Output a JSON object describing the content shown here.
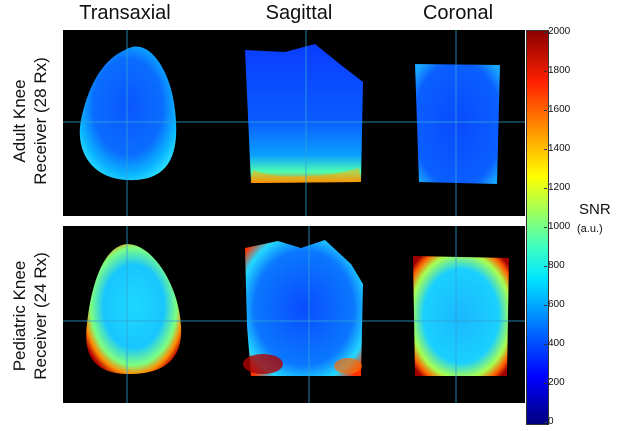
{
  "columns": {
    "transaxial": "Transaxial",
    "sagittal": "Sagittal",
    "coronal": "Coronal"
  },
  "rows": {
    "adult": {
      "line1": "Adult Knee",
      "line2": "Receiver  (28 Rx)"
    },
    "pediatric": {
      "line1": "Pediatric Knee",
      "line2": "Receiver (24 Rx)"
    }
  },
  "colorbar": {
    "label": "SNR",
    "unit": "(a.u.)",
    "range": [
      0,
      2000
    ],
    "ticks": [
      "2000",
      "1800",
      "1600",
      "1400",
      "1200",
      "1000",
      "800",
      "600",
      "400",
      "200",
      "0"
    ],
    "colors": [
      "#00007f",
      "#0000ff",
      "#0080ff",
      "#00e5ff",
      "#a8ff50",
      "#ffff00",
      "#ff9a00",
      "#ff2000",
      "#8b0000"
    ]
  }
}
